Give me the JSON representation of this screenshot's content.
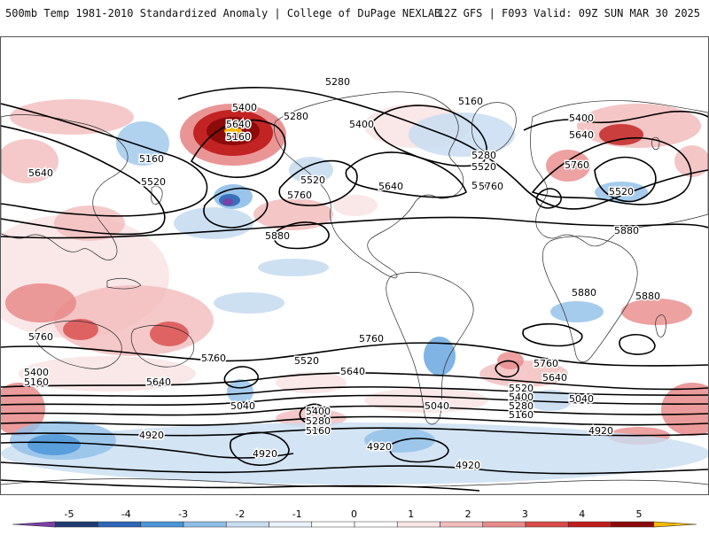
{
  "header": {
    "title_left": "500mb Temp 1981-2010 Standardized Anomaly | College of DuPage NEXLAB",
    "title_right": "12Z GFS | F093 Valid: 09Z SUN MAR 30 2025"
  },
  "colors": {
    "land_outline": "#2a2a2a",
    "contour": "#000000",
    "background": "#ffffff"
  },
  "colorbar": {
    "labels": [
      "-5",
      "-4",
      "-3",
      "-2",
      "-1",
      "0",
      "1",
      "2",
      "3",
      "4",
      "5"
    ],
    "bins": [
      "#7b3fa8",
      "#1f3a6e",
      "#2e66b8",
      "#4a94d8",
      "#8fbfe8",
      "#c8ddf1",
      "#eaf2fa",
      "#ffffff",
      "#ffffff",
      "#fae4e4",
      "#f2bcbc",
      "#e88a8a",
      "#d94a4a",
      "#c01c1c",
      "#8a0a0a",
      "#f5b800"
    ]
  },
  "contours": {
    "labels": [
      {
        "text": "5280"
      },
      {
        "text": "5400"
      },
      {
        "text": "5640"
      },
      {
        "text": "5280"
      },
      {
        "text": "5400"
      },
      {
        "text": "5160"
      },
      {
        "text": "5160"
      },
      {
        "text": "5400"
      },
      {
        "text": "5640"
      },
      {
        "text": "5160"
      },
      {
        "text": "5640"
      },
      {
        "text": "5520"
      },
      {
        "text": "5520"
      },
      {
        "text": "5280"
      },
      {
        "text": "5520"
      },
      {
        "text": "5760"
      },
      {
        "text": "5760"
      },
      {
        "text": "5640"
      },
      {
        "text": "5760"
      },
      {
        "text": "5760"
      },
      {
        "text": "5520"
      },
      {
        "text": "5880"
      },
      {
        "text": "5880"
      },
      {
        "text": "5880"
      },
      {
        "text": "5880"
      },
      {
        "text": "5760"
      },
      {
        "text": "5760"
      },
      {
        "text": "5760"
      },
      {
        "text": "5520"
      },
      {
        "text": "5640"
      },
      {
        "text": "5760"
      },
      {
        "text": "5400"
      },
      {
        "text": "5160"
      },
      {
        "text": "5640"
      },
      {
        "text": "5640"
      },
      {
        "text": "5520"
      },
      {
        "text": "5400"
      },
      {
        "text": "5280"
      },
      {
        "text": "5160"
      },
      {
        "text": "5040"
      },
      {
        "text": "5400"
      },
      {
        "text": "5280"
      },
      {
        "text": "5160"
      },
      {
        "text": "5040"
      },
      {
        "text": "5040"
      },
      {
        "text": "4920"
      },
      {
        "text": "4920"
      },
      {
        "text": "4920"
      },
      {
        "text": "4920"
      },
      {
        "text": "4920"
      }
    ]
  }
}
